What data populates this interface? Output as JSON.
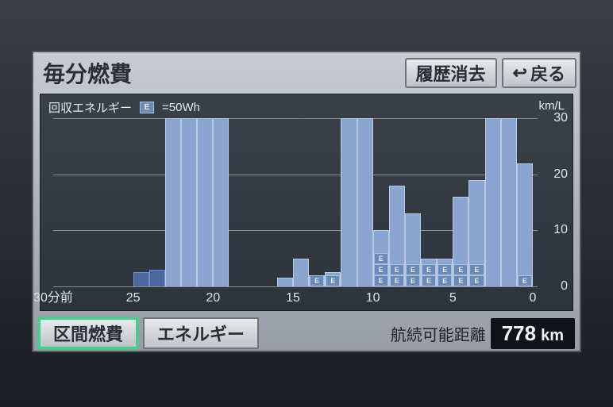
{
  "header": {
    "title": "毎分燃費",
    "clear_button_label": "履歴消去",
    "back_button_label": "戻る"
  },
  "chart": {
    "type": "bar",
    "legend_label": "回収エネルギー",
    "e_legend_text": "=50Wh",
    "y_unit": "km/L",
    "x_unit_suffix": "分前",
    "y_limits": [
      0,
      30
    ],
    "y_ticks": [
      0,
      10,
      20,
      30
    ],
    "x_ticks": [
      30,
      25,
      20,
      15,
      10,
      5,
      0
    ],
    "bar_count": 30,
    "bar_color_light": "#8aa6d0",
    "bar_color_dark": "#4a68a0",
    "bar_border_color": "#b8cae4",
    "e_marker_bg": "#6a8ab8",
    "e_marker_border": "#a8c0e0",
    "background_color": "#2e343c",
    "grid_color": "#8a8e94",
    "font_color": "#e0e4e8",
    "bars": [
      {
        "minute": 25,
        "value": 2.5,
        "e": 0,
        "dark": true
      },
      {
        "minute": 24,
        "value": 3.0,
        "e": 0,
        "dark": true
      },
      {
        "minute": 23,
        "value": 30,
        "e": 0,
        "dark": false
      },
      {
        "minute": 22,
        "value": 30,
        "e": 0,
        "dark": false
      },
      {
        "minute": 21,
        "value": 30,
        "e": 0,
        "dark": false
      },
      {
        "minute": 20,
        "value": 30,
        "e": 0,
        "dark": false
      },
      {
        "minute": 16,
        "value": 1.5,
        "e": 0,
        "dark": false
      },
      {
        "minute": 15,
        "value": 5.0,
        "e": 0,
        "dark": false
      },
      {
        "minute": 14,
        "value": 2.0,
        "e": 1,
        "dark": false
      },
      {
        "minute": 13,
        "value": 2.5,
        "e": 1,
        "dark": false
      },
      {
        "minute": 12,
        "value": 30,
        "e": 0,
        "dark": false
      },
      {
        "minute": 11,
        "value": 30,
        "e": 0,
        "dark": false
      },
      {
        "minute": 10,
        "value": 10,
        "e": 3,
        "dark": false
      },
      {
        "minute": 9,
        "value": 18,
        "e": 2,
        "dark": false
      },
      {
        "minute": 8,
        "value": 13,
        "e": 2,
        "dark": false
      },
      {
        "minute": 7,
        "value": 5,
        "e": 2,
        "dark": false
      },
      {
        "minute": 6,
        "value": 5,
        "e": 2,
        "dark": false
      },
      {
        "minute": 5,
        "value": 16,
        "e": 2,
        "dark": false
      },
      {
        "minute": 4,
        "value": 19,
        "e": 2,
        "dark": false
      },
      {
        "minute": 3,
        "value": 30,
        "e": 0,
        "dark": false
      },
      {
        "minute": 2,
        "value": 30,
        "e": 0,
        "dark": false
      },
      {
        "minute": 1,
        "value": 22,
        "e": 1,
        "dark": false
      }
    ]
  },
  "footer": {
    "tab_trip_label": "区間燃費",
    "tab_energy_label": "エネルギー",
    "range_label": "航続可能距離",
    "range_value": "778",
    "range_unit": "km"
  }
}
